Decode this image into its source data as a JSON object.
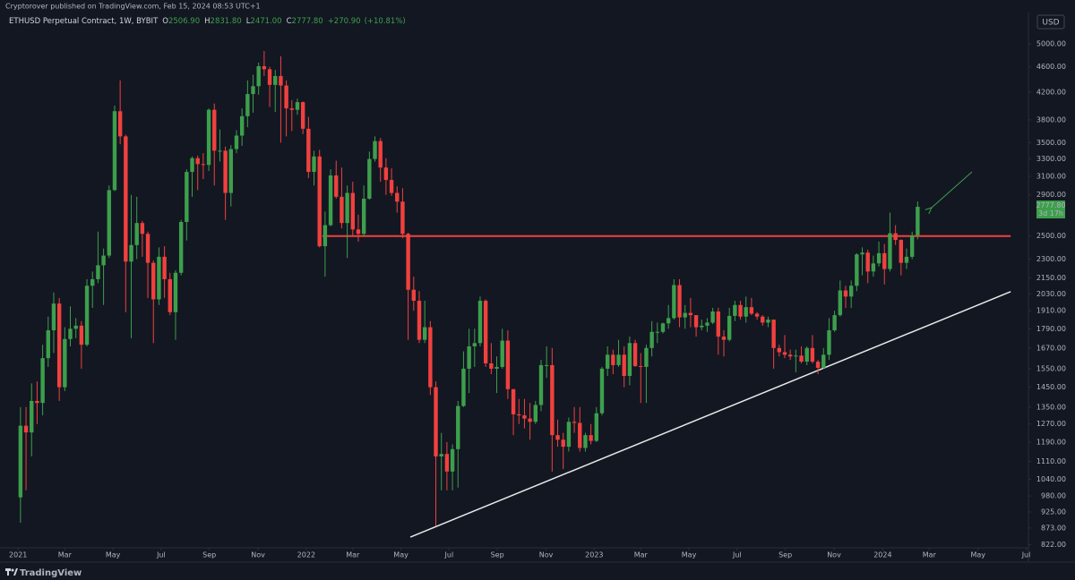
{
  "publisher_line": "Cryptorover published on TradingView.com, Feb 15, 2024 08:53 UTC+1",
  "branding": "TradingView",
  "chart_data": {
    "type": "candlestick",
    "title": "ETHUSD Perpetual Contract, 1W, BYBIT",
    "ohlc_legend": {
      "labels": [
        "O",
        "H",
        "L",
        "C"
      ],
      "values": [
        2506.9,
        2831.8,
        2471,
        2777.8
      ],
      "value_labels": [
        "2506.90",
        "2831.80",
        "2471.00",
        "2777.80"
      ]
    },
    "change": {
      "value": 270.9,
      "label": "+270.90"
    },
    "change_percent": {
      "value": 10.81,
      "label": "(+10.81%)"
    },
    "currency": "USD",
    "last_price": {
      "value": 2777.8,
      "label": "2777.80"
    },
    "countdown": "3d 17h",
    "up_color": "#3d9f4c",
    "down_color": "#f0413e",
    "log_scale": true,
    "grid": false,
    "xlim": [
      -3.7,
      182
    ],
    "ylim": [
      813,
      5630
    ],
    "xticks": [
      {
        "value": -0.43,
        "label": "2021"
      },
      {
        "value": 8,
        "label": "Mar"
      },
      {
        "value": 16.7,
        "label": "May"
      },
      {
        "value": 25.4,
        "label": "Jul"
      },
      {
        "value": 34.1,
        "label": "Sep"
      },
      {
        "value": 42.9,
        "label": "Nov"
      },
      {
        "value": 51.6,
        "label": "2022"
      },
      {
        "value": 60,
        "label": "Mar"
      },
      {
        "value": 68.7,
        "label": "May"
      },
      {
        "value": 77.4,
        "label": "Jul"
      },
      {
        "value": 86.1,
        "label": "Sep"
      },
      {
        "value": 94.9,
        "label": "Nov"
      },
      {
        "value": 103.6,
        "label": "2023"
      },
      {
        "value": 112,
        "label": "Mar"
      },
      {
        "value": 120.7,
        "label": "May"
      },
      {
        "value": 129.4,
        "label": "Jul"
      },
      {
        "value": 138.1,
        "label": "Sep"
      },
      {
        "value": 146.9,
        "label": "Nov"
      },
      {
        "value": 155.7,
        "label": "2024"
      },
      {
        "value": 164.1,
        "label": "Mar"
      },
      {
        "value": 172.9,
        "label": "May"
      },
      {
        "value": 181.6,
        "label": "Jul"
      }
    ],
    "yticks": [
      {
        "value": 822,
        "label": "822.00"
      },
      {
        "value": 873,
        "label": "873.00"
      },
      {
        "value": 925,
        "label": "925.00"
      },
      {
        "value": 980,
        "label": "980.00"
      },
      {
        "value": 1040,
        "label": "1040.00"
      },
      {
        "value": 1110,
        "label": "1110.00"
      },
      {
        "value": 1190,
        "label": "1190.00"
      },
      {
        "value": 1270,
        "label": "1270.00"
      },
      {
        "value": 1350,
        "label": "1350.00"
      },
      {
        "value": 1450,
        "label": "1450.00"
      },
      {
        "value": 1550,
        "label": "1550.00"
      },
      {
        "value": 1670,
        "label": "1670.00"
      },
      {
        "value": 1790,
        "label": "1790.00"
      },
      {
        "value": 1910,
        "label": "1910.00"
      },
      {
        "value": 2030,
        "label": "2030.00"
      },
      {
        "value": 2150,
        "label": "2150.00"
      },
      {
        "value": 2300,
        "label": "2300.00"
      },
      {
        "value": 2500,
        "label": "2500.00"
      },
      {
        "value": 2900,
        "label": "2900.00"
      },
      {
        "value": 3100,
        "label": "3100.00"
      },
      {
        "value": 3300,
        "label": "3300.00"
      },
      {
        "value": 3500,
        "label": "3500.00"
      },
      {
        "value": 3800,
        "label": "3800.00"
      },
      {
        "value": 4200,
        "label": "4200.00"
      },
      {
        "value": 4600,
        "label": "4600.00"
      },
      {
        "value": 5000,
        "label": "5000.00"
      }
    ],
    "hline": {
      "value": 2500,
      "color": "#f0413e",
      "x": [
        54.5,
        178.8
      ]
    },
    "trendline": {
      "x": [
        70.4,
        178.8
      ],
      "y": [
        845,
        2046
      ],
      "color": "#e8e8e8"
    },
    "open": [
      975,
      1262,
      1232,
      1380,
      1370,
      1610,
      1780,
      1960,
      1450,
      1725,
      1790,
      1810,
      1690,
      2090,
      2140,
      2250,
      2330,
      2950,
      3920,
      3580,
      2280,
      2420,
      2620,
      2520,
      2270,
      1990,
      2320,
      2140,
      1900,
      2190,
      2630,
      3150,
      3310,
      3240,
      3230,
      3940,
      3400,
      3400,
      2920,
      3420,
      3590,
      3850,
      4170,
      4290,
      4610,
      4560,
      4310,
      4450,
      4300,
      3960,
      3940,
      4050,
      3680,
      3150,
      3330,
      2410,
      2600,
      3110,
      2880,
      2620,
      2920,
      2560,
      2520,
      2860,
      3300,
      3520,
      3200,
      3060,
      2920,
      2830,
      2520,
      2060,
      1980,
      1720,
      1800,
      1450,
      1130,
      1140,
      1070,
      1160,
      1355,
      1550,
      1680,
      1700,
      1980,
      1580,
      1550,
      1560,
      1715,
      1440,
      1315,
      1310,
      1295,
      1280,
      1360,
      1570,
      1570,
      1220,
      1200,
      1170,
      1280,
      1275,
      1165,
      1220,
      1195,
      1320,
      1550,
      1630,
      1570,
      1630,
      1510,
      1700,
      1565,
      1560,
      1670,
      1770,
      1770,
      1825,
      1860,
      2095,
      1865,
      1895,
      1880,
      1800,
      1810,
      1830,
      1905,
      1740,
      1720,
      1875,
      1950,
      1870,
      1935,
      1890,
      1870,
      1830,
      1850,
      1670,
      1645,
      1630,
      1620,
      1625,
      1590,
      1670,
      1590,
      1555,
      1630,
      1780,
      1880,
      2055,
      2010,
      2090,
      2340,
      2355,
      2200,
      2265,
      2350,
      2220,
      2525,
      2465,
      2270,
      2320,
      2506.9
    ],
    "high": [
      1350,
      1350,
      1470,
      1480,
      1690,
      1870,
      2040,
      2000,
      1800,
      1940,
      1860,
      1840,
      2140,
      2200,
      2540,
      2390,
      3000,
      4000,
      4380,
      3600,
      2900,
      2880,
      2640,
      2540,
      2290,
      2400,
      2410,
      2190,
      2210,
      2650,
      3180,
      3330,
      3340,
      3370,
      3960,
      4030,
      3670,
      3450,
      3470,
      3660,
      3960,
      4380,
      4470,
      4670,
      4870,
      4600,
      4550,
      4780,
      4380,
      4080,
      4100,
      4060,
      3840,
      3400,
      3410,
      2730,
      3180,
      3280,
      3200,
      3000,
      3040,
      2700,
      3000,
      3390,
      3580,
      3560,
      3310,
      3190,
      2990,
      2970,
      2530,
      2160,
      2050,
      1980,
      1840,
      1480,
      1230,
      1190,
      1180,
      1380,
      1650,
      1790,
      1790,
      2010,
      1990,
      1700,
      1620,
      1790,
      1780,
      1440,
      1390,
      1390,
      1370,
      1380,
      1600,
      1680,
      1670,
      1290,
      1230,
      1300,
      1350,
      1350,
      1230,
      1270,
      1350,
      1560,
      1680,
      1660,
      1720,
      1680,
      1740,
      1720,
      1640,
      1690,
      1840,
      1830,
      1830,
      1950,
      2140,
      2140,
      1950,
      2000,
      1880,
      1850,
      1860,
      1930,
      1930,
      1780,
      1930,
      1980,
      1980,
      2010,
      2000,
      1900,
      1880,
      1870,
      1850,
      1690,
      1750,
      1660,
      1660,
      1680,
      1680,
      1750,
      1600,
      1670,
      1860,
      1910,
      2130,
      2090,
      2130,
      2350,
      2400,
      2380,
      2330,
      2450,
      2430,
      2720,
      2600,
      2470,
      2390,
      2540,
      2831.8
    ],
    "low": [
      890,
      1000,
      1130,
      1270,
      1310,
      1560,
      1640,
      1380,
      1430,
      1680,
      1730,
      1550,
      1680,
      1930,
      2110,
      1950,
      2310,
      2940,
      3480,
      1900,
      1730,
      2300,
      2320,
      2000,
      1700,
      1950,
      2000,
      1880,
      1720,
      2170,
      2460,
      2880,
      2950,
      3070,
      3160,
      3000,
      3270,
      2650,
      2780,
      3370,
      3460,
      3700,
      3900,
      4160,
      4450,
      3980,
      3910,
      3500,
      3580,
      3650,
      3870,
      3610,
      3080,
      3000,
      2400,
      2160,
      2590,
      2860,
      2570,
      2310,
      2500,
      2450,
      2500,
      2850,
      3270,
      3040,
      2900,
      2890,
      2720,
      2480,
      1720,
      1910,
      1700,
      1700,
      1410,
      880,
      1000,
      1000,
      1000,
      1010,
      1350,
      1420,
      1560,
      1680,
      1560,
      1520,
      1420,
      1550,
      1390,
      1220,
      1270,
      1250,
      1200,
      1270,
      1330,
      1500,
      1070,
      1170,
      1080,
      1150,
      1230,
      1150,
      1150,
      1180,
      1190,
      1310,
      1510,
      1520,
      1560,
      1450,
      1460,
      1560,
      1370,
      1370,
      1620,
      1700,
      1760,
      1790,
      1850,
      1800,
      1790,
      1800,
      1740,
      1780,
      1770,
      1820,
      1630,
      1620,
      1710,
      1840,
      1850,
      1830,
      1880,
      1850,
      1810,
      1800,
      1550,
      1620,
      1610,
      1600,
      1530,
      1580,
      1570,
      1580,
      1520,
      1550,
      1600,
      1770,
      1870,
      1930,
      1930,
      2050,
      2170,
      2110,
      2160,
      2240,
      2100,
      2200,
      2420,
      2170,
      2220,
      2300,
      2471
    ],
    "close": [
      1262,
      1232,
      1380,
      1370,
      1610,
      1780,
      1960,
      1450,
      1725,
      1790,
      1810,
      1690,
      2090,
      2140,
      2250,
      2330,
      2950,
      3920,
      3580,
      2280,
      2420,
      2620,
      2520,
      2270,
      1990,
      2320,
      2140,
      1900,
      2190,
      2630,
      3150,
      3310,
      3240,
      3230,
      3940,
      3400,
      3400,
      2920,
      3420,
      3590,
      3850,
      4170,
      4290,
      4610,
      4560,
      4310,
      4450,
      4300,
      3960,
      3940,
      4050,
      3680,
      3150,
      3330,
      2410,
      2600,
      3110,
      2880,
      2620,
      2920,
      2560,
      2520,
      2860,
      3300,
      3520,
      3200,
      3060,
      2920,
      2830,
      2520,
      2060,
      1980,
      1720,
      1800,
      1450,
      1130,
      1140,
      1070,
      1160,
      1355,
      1550,
      1680,
      1700,
      1980,
      1580,
      1550,
      1560,
      1715,
      1440,
      1315,
      1310,
      1295,
      1280,
      1360,
      1570,
      1570,
      1220,
      1200,
      1170,
      1280,
      1275,
      1165,
      1220,
      1195,
      1320,
      1550,
      1630,
      1570,
      1630,
      1510,
      1700,
      1565,
      1560,
      1670,
      1770,
      1770,
      1825,
      1860,
      2095,
      1865,
      1895,
      1880,
      1800,
      1810,
      1830,
      1905,
      1740,
      1720,
      1875,
      1950,
      1870,
      1935,
      1890,
      1870,
      1830,
      1850,
      1670,
      1645,
      1630,
      1620,
      1625,
      1590,
      1670,
      1590,
      1555,
      1630,
      1780,
      1880,
      2055,
      2010,
      2090,
      2340,
      2355,
      2200,
      2265,
      2350,
      2220,
      2525,
      2465,
      2270,
      2320,
      2505,
      2777.8
    ]
  }
}
